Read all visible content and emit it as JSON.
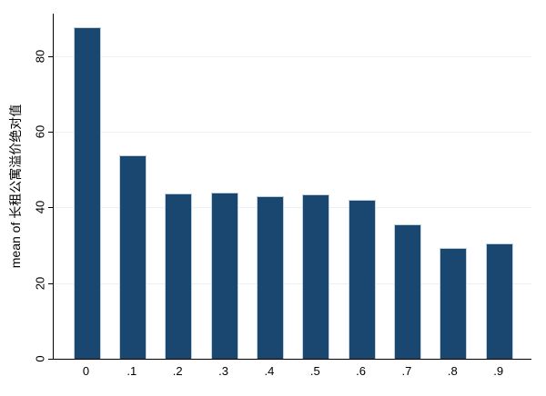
{
  "figure": {
    "background_color": "#ffffff",
    "axis_color": "#000000",
    "text_color": "#000000"
  },
  "chart_data": {
    "type": "bar",
    "title": "",
    "xlabel": "",
    "ylabel": "mean of 长租公寓溢价绝对值",
    "categories": [
      "0",
      ".1",
      ".2",
      ".3",
      ".4",
      ".5",
      ".6",
      ".7",
      ".8",
      ".9"
    ],
    "values": [
      87.6,
      53.8,
      43.8,
      43.9,
      43.0,
      43.4,
      42.0,
      35.6,
      29.3,
      30.4
    ],
    "yticks": [
      0,
      20,
      40,
      60,
      80
    ],
    "ylim": [
      0,
      91.2
    ],
    "grid": true,
    "legend": "none",
    "bar_fill_color": "#1a476f",
    "bar_outline_color": "#c2d2dd",
    "grid_color": "#e9f1f5"
  }
}
